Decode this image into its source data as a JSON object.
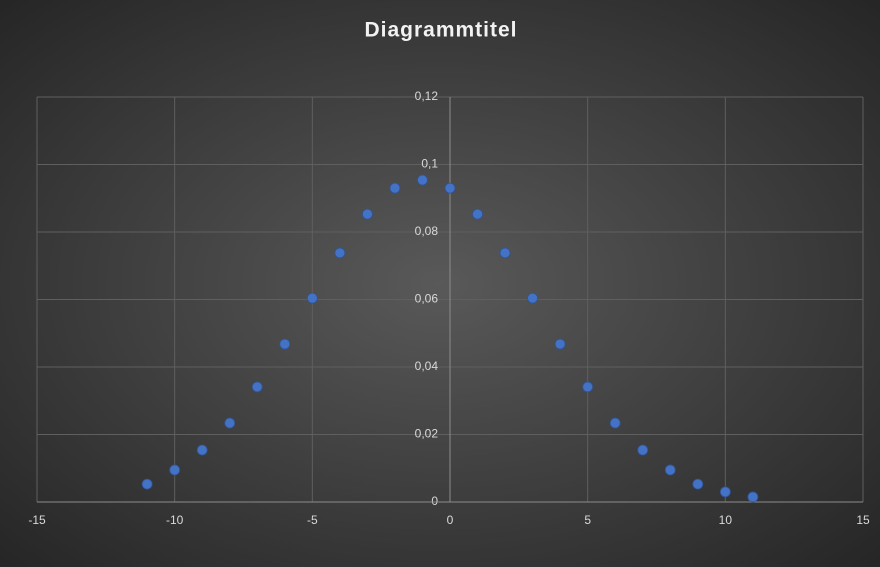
{
  "chart_data": {
    "type": "scatter",
    "title": "Diagrammtitel",
    "x": [
      -11,
      -10,
      -9,
      -8,
      -7,
      -6,
      -5,
      -4,
      -3,
      -2,
      -1,
      0,
      1,
      2,
      3,
      4,
      5,
      6,
      7,
      8,
      9,
      10,
      11
    ],
    "series": [
      {
        "color": "#4472c4",
        "values": [
          0.0053,
          0.0095,
          0.0154,
          0.0234,
          0.0341,
          0.0468,
          0.0604,
          0.0738,
          0.0853,
          0.093,
          0.0954,
          0.093,
          0.0853,
          0.0738,
          0.0604,
          0.0468,
          0.0341,
          0.0234,
          0.0154,
          0.0095,
          0.0053,
          0.003,
          0.0015
        ]
      }
    ],
    "xlim": [
      -15,
      15
    ],
    "xticks": [
      -15,
      -10,
      -5,
      0,
      5,
      10,
      15
    ],
    "ylim": [
      0,
      0.12
    ],
    "yticks": [
      0,
      {
        "value": 0.02,
        "label": "0,02"
      },
      {
        "value": 0.04,
        "label": "0,04"
      },
      {
        "value": 0.06,
        "label": "0,06"
      },
      {
        "value": 0.08,
        "label": "0,08"
      },
      {
        "value": 0.1,
        "label": "0,1"
      },
      {
        "value": 0.12,
        "label": "0,12"
      }
    ],
    "grid": true
  }
}
